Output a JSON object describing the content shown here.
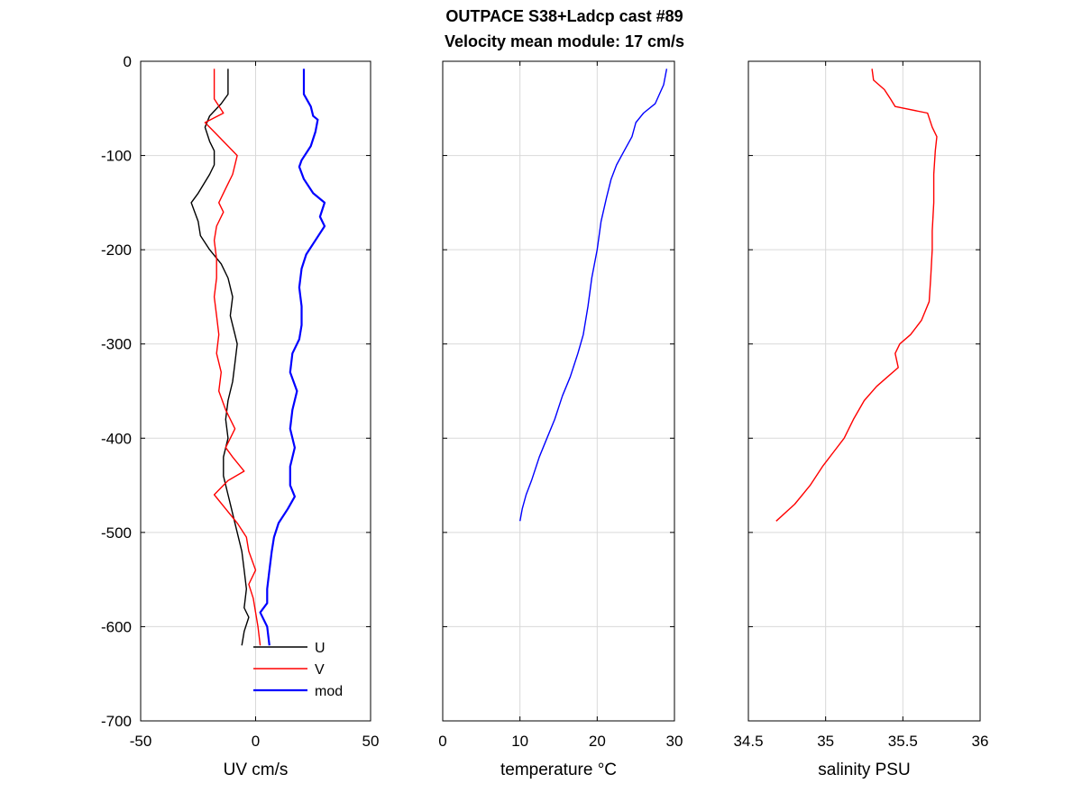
{
  "figure": {
    "title_line1": "OUTPACE S38+Ladcp cast #89",
    "title_line2": "Velocity mean module:  17 cm/s"
  },
  "chart_data": [
    {
      "type": "line",
      "xlabel": "UV cm/s",
      "ylabel": "",
      "xlim": [
        -50,
        50
      ],
      "ylim": [
        -700,
        0
      ],
      "xticks": [
        -50,
        0,
        50
      ],
      "yticks": [
        -700,
        -600,
        -500,
        -400,
        -300,
        -200,
        -100,
        0
      ],
      "grid": true,
      "legend": {
        "placement": "bottom-right",
        "entries": [
          "U",
          "V",
          "mod"
        ]
      },
      "series": [
        {
          "name": "U",
          "color": "#000000",
          "points": [
            [
              -12,
              -8
            ],
            [
              -12,
              -35
            ],
            [
              -15,
              -45
            ],
            [
              -20,
              -58
            ],
            [
              -22,
              -70
            ],
            [
              -20,
              -85
            ],
            [
              -18,
              -95
            ],
            [
              -18,
              -110
            ],
            [
              -20,
              -120
            ],
            [
              -25,
              -140
            ],
            [
              -28,
              -150
            ],
            [
              -25,
              -170
            ],
            [
              -24,
              -185
            ],
            [
              -20,
              -200
            ],
            [
              -15,
              -215
            ],
            [
              -12,
              -230
            ],
            [
              -10,
              -250
            ],
            [
              -11,
              -270
            ],
            [
              -9,
              -290
            ],
            [
              -8,
              -300
            ],
            [
              -9,
              -320
            ],
            [
              -10,
              -340
            ],
            [
              -12,
              -360
            ],
            [
              -13,
              -380
            ],
            [
              -12,
              -400
            ],
            [
              -14,
              -420
            ],
            [
              -14,
              -440
            ],
            [
              -12,
              -460
            ],
            [
              -10,
              -480
            ],
            [
              -8,
              -500
            ],
            [
              -6,
              -520
            ],
            [
              -5,
              -540
            ],
            [
              -4,
              -560
            ],
            [
              -5,
              -580
            ],
            [
              -3,
              -590
            ],
            [
              -5,
              -605
            ],
            [
              -6,
              -620
            ]
          ]
        },
        {
          "name": "V",
          "color": "#ff0000",
          "points": [
            [
              -18,
              -8
            ],
            [
              -18,
              -40
            ],
            [
              -14,
              -55
            ],
            [
              -22,
              -65
            ],
            [
              -18,
              -75
            ],
            [
              -14,
              -85
            ],
            [
              -8,
              -100
            ],
            [
              -10,
              -120
            ],
            [
              -13,
              -135
            ],
            [
              -16,
              -150
            ],
            [
              -14,
              -160
            ],
            [
              -17,
              -175
            ],
            [
              -18,
              -190
            ],
            [
              -17,
              -210
            ],
            [
              -17,
              -230
            ],
            [
              -18,
              -250
            ],
            [
              -17,
              -270
            ],
            [
              -16,
              -290
            ],
            [
              -17,
              -310
            ],
            [
              -15,
              -330
            ],
            [
              -16,
              -350
            ],
            [
              -13,
              -370
            ],
            [
              -9,
              -390
            ],
            [
              -13,
              -410
            ],
            [
              -10,
              -420
            ],
            [
              -5,
              -435
            ],
            [
              -12,
              -445
            ],
            [
              -18,
              -460
            ],
            [
              -13,
              -475
            ],
            [
              -8,
              -490
            ],
            [
              -4,
              -505
            ],
            [
              -3,
              -520
            ],
            [
              0,
              -540
            ],
            [
              -3,
              -555
            ],
            [
              -1,
              -570
            ],
            [
              0,
              -585
            ],
            [
              1,
              -600
            ],
            [
              2,
              -620
            ]
          ]
        },
        {
          "name": "mod",
          "color": "#0000ff",
          "points": [
            [
              21,
              -8
            ],
            [
              21,
              -35
            ],
            [
              24,
              -48
            ],
            [
              25,
              -58
            ],
            [
              27,
              -62
            ],
            [
              26,
              -75
            ],
            [
              24,
              -90
            ],
            [
              20,
              -105
            ],
            [
              19,
              -112
            ],
            [
              21,
              -125
            ],
            [
              25,
              -140
            ],
            [
              30,
              -150
            ],
            [
              28,
              -165
            ],
            [
              30,
              -175
            ],
            [
              26,
              -190
            ],
            [
              22,
              -205
            ],
            [
              20,
              -220
            ],
            [
              19,
              -240
            ],
            [
              20,
              -260
            ],
            [
              20,
              -280
            ],
            [
              19,
              -295
            ],
            [
              16,
              -310
            ],
            [
              15,
              -330
            ],
            [
              18,
              -350
            ],
            [
              16,
              -370
            ],
            [
              15,
              -390
            ],
            [
              17,
              -410
            ],
            [
              15,
              -430
            ],
            [
              15,
              -450
            ],
            [
              17,
              -462
            ],
            [
              14,
              -475
            ],
            [
              10,
              -490
            ],
            [
              8,
              -505
            ],
            [
              7,
              -520
            ],
            [
              6,
              -540
            ],
            [
              5,
              -560
            ],
            [
              5,
              -575
            ],
            [
              2,
              -585
            ],
            [
              5,
              -600
            ],
            [
              6,
              -620
            ]
          ]
        }
      ]
    },
    {
      "type": "line",
      "xlabel": "temperature °C",
      "ylabel": "",
      "xlim": [
        0,
        30
      ],
      "ylim": [
        -700,
        0
      ],
      "xticks": [
        0,
        10,
        20,
        30
      ],
      "yticks": [
        -700,
        -600,
        -500,
        -400,
        -300,
        -200,
        -100,
        0
      ],
      "grid": true,
      "series": [
        {
          "name": "",
          "color": "#0000ff",
          "points": [
            [
              29,
              -8
            ],
            [
              28.6,
              -25
            ],
            [
              27.5,
              -45
            ],
            [
              26,
              -55
            ],
            [
              25,
              -65
            ],
            [
              24.5,
              -80
            ],
            [
              23.5,
              -95
            ],
            [
              22.5,
              -110
            ],
            [
              21.8,
              -125
            ],
            [
              21.2,
              -145
            ],
            [
              20.5,
              -170
            ],
            [
              20,
              -200
            ],
            [
              19.3,
              -230
            ],
            [
              18.8,
              -260
            ],
            [
              18.2,
              -290
            ],
            [
              17.5,
              -310
            ],
            [
              16.5,
              -335
            ],
            [
              15.5,
              -355
            ],
            [
              14.5,
              -380
            ],
            [
              13.5,
              -400
            ],
            [
              12.5,
              -420
            ],
            [
              11.5,
              -445
            ],
            [
              10.8,
              -460
            ],
            [
              10.3,
              -475
            ],
            [
              10,
              -488
            ]
          ]
        }
      ]
    },
    {
      "type": "line",
      "xlabel": "salinity PSU",
      "ylabel": "",
      "xlim": [
        34.5,
        36
      ],
      "ylim": [
        -700,
        0
      ],
      "xticks": [
        34.5,
        35,
        35.5,
        36
      ],
      "yticks": [
        -700,
        -600,
        -500,
        -400,
        -300,
        -200,
        -100,
        0
      ],
      "grid": true,
      "series": [
        {
          "name": "",
          "color": "#ff0000",
          "points": [
            [
              35.3,
              -8
            ],
            [
              35.31,
              -20
            ],
            [
              35.38,
              -30
            ],
            [
              35.42,
              -40
            ],
            [
              35.45,
              -48
            ],
            [
              35.66,
              -55
            ],
            [
              35.69,
              -70
            ],
            [
              35.72,
              -80
            ],
            [
              35.71,
              -95
            ],
            [
              35.7,
              -120
            ],
            [
              35.7,
              -150
            ],
            [
              35.69,
              -180
            ],
            [
              35.69,
              -200
            ],
            [
              35.68,
              -230
            ],
            [
              35.67,
              -255
            ],
            [
              35.62,
              -275
            ],
            [
              35.55,
              -290
            ],
            [
              35.48,
              -300
            ],
            [
              35.45,
              -310
            ],
            [
              35.47,
              -325
            ],
            [
              35.4,
              -335
            ],
            [
              35.33,
              -345
            ],
            [
              35.25,
              -360
            ],
            [
              35.18,
              -380
            ],
            [
              35.12,
              -400
            ],
            [
              35.05,
              -415
            ],
            [
              34.98,
              -430
            ],
            [
              34.9,
              -450
            ],
            [
              34.8,
              -470
            ],
            [
              34.68,
              -488
            ]
          ]
        }
      ]
    }
  ]
}
